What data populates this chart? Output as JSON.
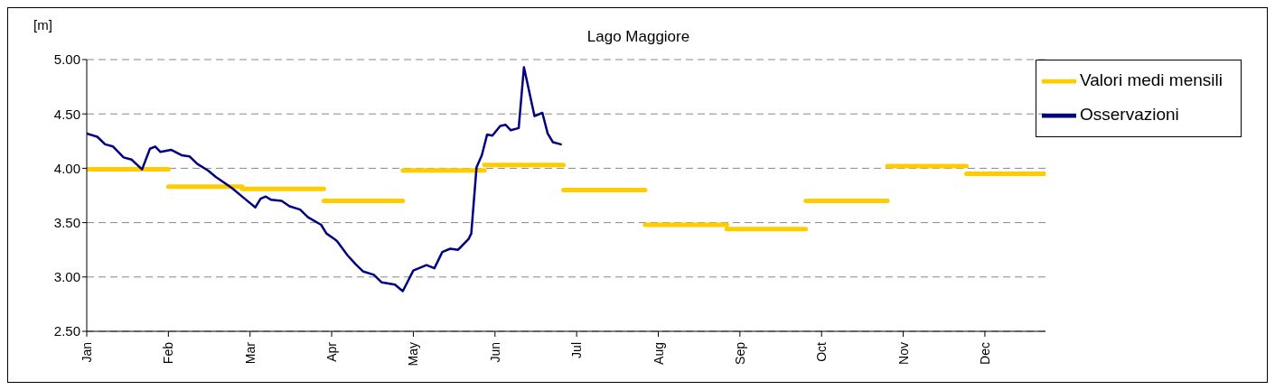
{
  "chart_data": {
    "type": "line",
    "title": "Lago Maggiore",
    "ylabel": "[m]",
    "xlim": [
      "--01-01",
      "--12-31"
    ],
    "xticks": [
      {
        "value": "--01-01",
        "label": "Jan"
      },
      {
        "value": "--02-01",
        "label": "Feb"
      },
      {
        "value": "--03-04",
        "label": "Mar"
      },
      {
        "value": "--04-04",
        "label": "Apr"
      },
      {
        "value": "--05-05",
        "label": "May"
      },
      {
        "value": "--06-05",
        "label": "Jun"
      },
      {
        "value": "--07-06",
        "label": "Jul"
      },
      {
        "value": "--08-06",
        "label": "Aug"
      },
      {
        "value": "--09-06",
        "label": "Sep"
      },
      {
        "value": "--10-07",
        "label": "Oct"
      },
      {
        "value": "--11-07",
        "label": "Nov"
      },
      {
        "value": "--12-08",
        "label": "Dec"
      }
    ],
    "ylim": [
      2.5,
      5
    ],
    "yticks": [
      {
        "value": 2.5,
        "label": "2.50"
      },
      {
        "value": 3,
        "label": "3.00"
      },
      {
        "value": 3.5,
        "label": "3.50"
      },
      {
        "value": 4,
        "label": "4.00"
      },
      {
        "value": 4.5,
        "label": "4.50"
      },
      {
        "value": 5,
        "label": "5.00"
      }
    ],
    "grid": "y",
    "legend": "top right",
    "marker": "none",
    "line_style": "solid",
    "series": [
      {
        "name": "Valori medi mensili",
        "color": "#ffcc00",
        "x": [
          "--01-01",
          "--02-01",
          null,
          "--02-01",
          "--03-01",
          null,
          "--03-01",
          "--04-01",
          null,
          "--04-01",
          "--05-01",
          null,
          "--05-01",
          "--06-01",
          null,
          "--06-01",
          "--07-01",
          null,
          "--07-01",
          "--08-01",
          null,
          "--08-01",
          "--09-01",
          null,
          "--09-01",
          "--10-01",
          null,
          "--10-01",
          "--11-01",
          null,
          "--11-01",
          "--12-01",
          null,
          "--12-01",
          "--12-31"
        ],
        "values": [
          3.99,
          3.99,
          null,
          3.83,
          3.83,
          null,
          3.81,
          3.81,
          null,
          3.7,
          3.7,
          null,
          3.98,
          3.98,
          null,
          4.03,
          4.03,
          null,
          3.8,
          3.8,
          null,
          3.48,
          3.48,
          null,
          3.44,
          3.44,
          null,
          3.7,
          3.7,
          null,
          4.02,
          4.02,
          null,
          3.95,
          3.95
        ]
      },
      {
        "name": "Osservazioni",
        "color": "#000080",
        "x": [
          "--01-01",
          "--01-05",
          "--01-08",
          "--01-11",
          "--01-15",
          "--01-18",
          "--01-22",
          "--01-25",
          "--01-27",
          "--01-29",
          "--02-02",
          "--02-06",
          "--02-09",
          "--02-12",
          "--02-16",
          "--02-19",
          "--02-25",
          "--03-02",
          "--03-06",
          "--03-08",
          "--03-10",
          "--03-12",
          "--03-16",
          "--03-19",
          "--03-23",
          "--03-26",
          "--03-31",
          "--04-02",
          "--04-05",
          "--04-06",
          "--04-10",
          "--04-13",
          "--04-16",
          "--04-20",
          "--04-23",
          "--04-28",
          "--05-01",
          "--05-05",
          "--05-10",
          "--05-13",
          "--05-16",
          "--05-19",
          "--05-22",
          "--05-26",
          "--05-27",
          "--05-29",
          "--05-31",
          "--06-02",
          "--06-04",
          "--06-07",
          "--06-09",
          "--06-11",
          "--06-14",
          "--06-16",
          "--06-20",
          "--06-23",
          "--06-25",
          "--06-27",
          "--06-30"
        ],
        "values": [
          4.32,
          4.29,
          4.22,
          4.2,
          4.1,
          4.08,
          3.99,
          4.18,
          4.2,
          4.15,
          4.17,
          4.12,
          4.11,
          4.04,
          3.98,
          3.92,
          3.82,
          3.72,
          3.64,
          3.72,
          3.74,
          3.71,
          3.7,
          3.65,
          3.62,
          3.55,
          3.48,
          3.4,
          3.35,
          3.33,
          3.2,
          3.12,
          3.05,
          3.02,
          2.95,
          2.93,
          2.87,
          3.06,
          3.11,
          3.08,
          3.23,
          3.26,
          3.25,
          3.35,
          3.4,
          4.01,
          4.12,
          4.31,
          4.3,
          4.39,
          4.4,
          4.35,
          4.37,
          4.93,
          4.48,
          4.51,
          4.32,
          4.24,
          4.22
        ]
      }
    ]
  }
}
